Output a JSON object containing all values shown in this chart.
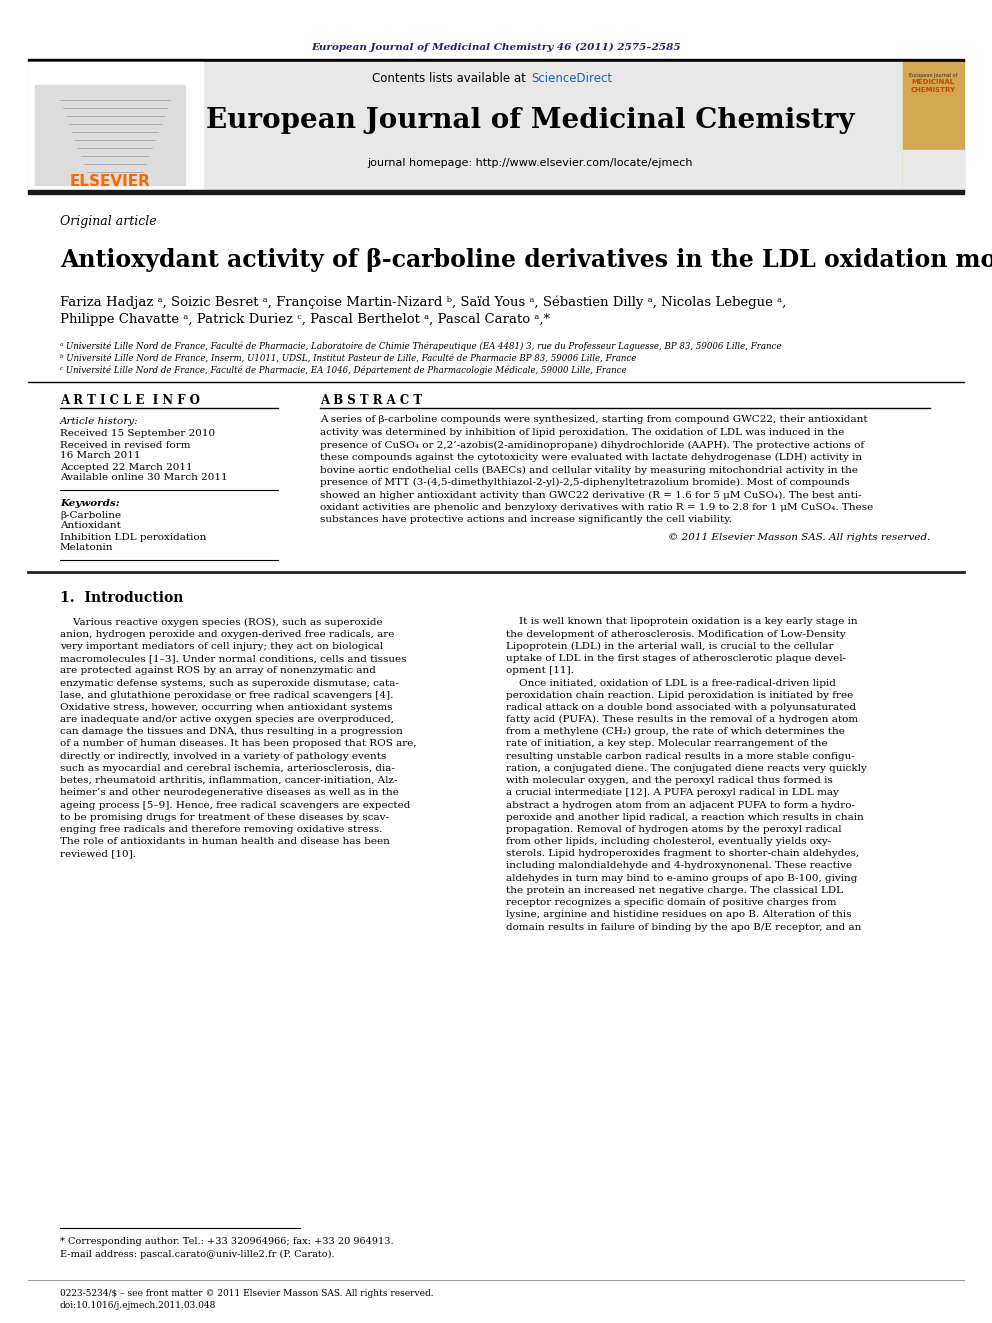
{
  "page_bg": "#ffffff",
  "top_citation": "European Journal of Medicinal Chemistry 46 (2011) 2575–2585",
  "top_citation_color": "#1a237e",
  "journal_header_bg": "#e8e8e8",
  "journal_name": "European Journal of Medicinal Chemistry",
  "journal_url": "journal homepage: http://www.elsevier.com/locate/ejmech",
  "contents_text": "Contents lists available at ",
  "sciencedirect_text": "ScienceDirect",
  "sciencedirect_color": "#1565c0",
  "elsevier_color": "#ff6600",
  "article_type": "Original article",
  "title": "Antioxydant activity of β-carboline derivatives in the LDL oxidation model",
  "authors_line1": "Fariza Hadjaz ᵃ, Soizic Besret ᵃ, Françoise Martin-Nizard ᵇ, Saïd Yous ᵃ, Sébastien Dilly ᵃ, Nicolas Lebegue ᵃ,",
  "authors_line2": "Philippe Chavatte ᵃ, Patrick Duriez ᶜ, Pascal Berthelot ᵃ, Pascal Carato ᵃ,*",
  "affil_a": "ᵃ Université Lille Nord de France, Faculté de Pharmacie, Laboratoire de Chimie Thérapeutique (EA 4481) 3, rue du Professeur Laguesse, BP 83, 59006 Lille, France",
  "affil_b": "ᵇ Université Lille Nord de France, Inserm, U1011, UDSL, Institut Pasteur de Lille, Faculté de Pharmacie BP 83, 59006 Lille, France",
  "affil_c": "ᶜ Université Lille Nord de France, Faculté de Pharmacie, EA 1046, Département de Pharmacologie Médicale, 59000 Lille, France",
  "article_info_header": "A R T I C L E  I N F O",
  "abstract_header": "A B S T R A C T",
  "article_history_label": "Article history:",
  "received_1": "Received 15 September 2010",
  "received_2": "Received in revised form",
  "received_2b": "16 March 2011",
  "accepted": "Accepted 22 March 2011",
  "available": "Available online 30 March 2011",
  "keywords_label": "Keywords:",
  "keyword_1": "β-Carboline",
  "keyword_2": "Antioxidant",
  "keyword_3": "Inhibition LDL peroxidation",
  "keyword_4": "Melatonin",
  "abstract_text": "A series of β-carboline compounds were synthesized, starting from compound GWC22, their antioxidant\nactivity was determined by inhibition of lipid peroxidation. The oxidation of LDL was induced in the\npresence of CuSO₄ or 2,2’-azobis(2-amidinopropane) dihydrochloride (AAPH). The protective actions of\nthese compounds against the cytotoxicity were evaluated with lactate dehydrogenase (LDH) activity in\nbovine aortic endothelial cells (BAECs) and cellular vitality by measuring mitochondrial activity in the\npresence of MTT (3-(4,5-dimethylthiazol-2-yl)-2,5-diphenyltetrazolium bromide). Most of compounds\nshowed an higher antioxidant activity than GWC22 derivative (R = 1.6 for 5 μM CuSO₄). The best anti-\noxidant activities are phenolic and benzyloxy derivatives with ratio R = 1.9 to 2.8 for 1 μM CuSO₄. These\nsubstances have protective actions and increase significantly the cell viability.",
  "copyright": "© 2011 Elsevier Masson SAS. All rights reserved.",
  "intro_header": "1.  Introduction",
  "intro_left": "    Various reactive oxygen species (ROS), such as superoxide\nanion, hydrogen peroxide and oxygen-derived free radicals, are\nvery important mediators of cell injury; they act on biological\nmacromolecules [1–3]. Under normal conditions, cells and tissues\nare protected against ROS by an array of nonenzymatic and\nenzymatic defense systems, such as superoxide dismutase, cata-\nlase, and glutathione peroxidase or free radical scavengers [4].\nOxidative stress, however, occurring when antioxidant systems\nare inadequate and/or active oxygen species are overproduced,\ncan damage the tissues and DNA, thus resulting in a progression\nof a number of human diseases. It has been proposed that ROS are,\ndirectly or indirectly, involved in a variety of pathology events\nsuch as myocardial and cerebral ischemia, arteriosclerosis, dia-\nbetes, rheumatoid arthritis, inflammation, cancer-initiation, Alz-\nheimer’s and other neurodegenerative diseases as well as in the\nageing process [5–9]. Hence, free radical scavengers are expected\nto be promising drugs for treatment of these diseases by scav-\nenging free radicals and therefore removing oxidative stress.\nThe role of antioxidants in human health and disease has been\nreviewed [10].",
  "intro_right": "    It is well known that lipoprotein oxidation is a key early stage in\nthe development of atherosclerosis. Modification of Low-Density\nLipoprotein (LDL) in the arterial wall, is crucial to the cellular\nuptake of LDL in the first stages of atherosclerotic plaque devel-\nopment [11].\n    Once initiated, oxidation of LDL is a free-radical-driven lipid\nperoxidation chain reaction. Lipid peroxidation is initiated by free\nradical attack on a double bond associated with a polyunsaturated\nfatty acid (PUFA). These results in the removal of a hydrogen atom\nfrom a methylene (CH₂) group, the rate of which determines the\nrate of initiation, a key step. Molecular rearrangement of the\nresulting unstable carbon radical results in a more stable configu-\nration, a conjugated diene. The conjugated diene reacts very quickly\nwith molecular oxygen, and the peroxyl radical thus formed is\na crucial intermediate [12]. A PUFA peroxyl radical in LDL may\nabstract a hydrogen atom from an adjacent PUFA to form a hydro-\nperoxide and another lipid radical, a reaction which results in chain\npropagation. Removal of hydrogen atoms by the peroxyl radical\nfrom other lipids, including cholesterol, eventually yields oxy-\nsterols. Lipid hydroperoxides fragment to shorter-chain aldehydes,\nincluding malondialdehyde and 4-hydroxynonenal. These reactive\naldehydes in turn may bind to e-amino groups of apo B-100, giving\nthe protein an increased net negative charge. The classical LDL\nreceptor recognizes a specific domain of positive charges from\nlysine, arginine and histidine residues on apo B. Alteration of this\ndomain results in failure of binding by the apo B/E receptor, and an",
  "footer_left": "0223-5234/$ – see front matter © 2011 Elsevier Masson SAS. All rights reserved.",
  "footer_doi": "doi:10.1016/j.ejmech.2011.03.048",
  "footnote_corresp": "* Corresponding author. Tel.: +33 320964966; fax: +33 20 964913.",
  "footnote_email": "E-mail address: pascal.carato@univ-lille2.fr (P. Carato)."
}
